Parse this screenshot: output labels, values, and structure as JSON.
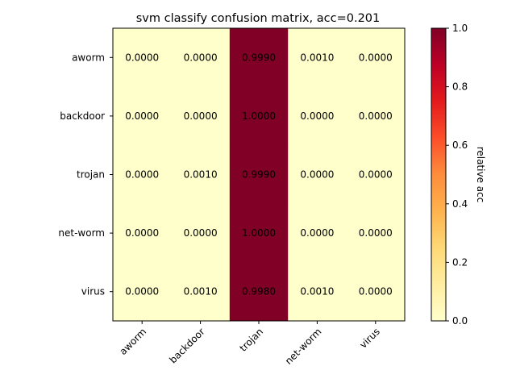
{
  "chart_data": {
    "type": "heatmap",
    "title": "svm classify confusion matrix, acc=0.201",
    "row_labels": [
      "aworm",
      "backdoor",
      "trojan",
      "net-worm",
      "virus"
    ],
    "col_labels": [
      "aworm",
      "backdoor",
      "trojan",
      "net-worm",
      "virus"
    ],
    "values": [
      [
        0.0,
        0.0,
        0.999,
        0.001,
        0.0
      ],
      [
        0.0,
        0.0,
        1.0,
        0.0,
        0.0
      ],
      [
        0.0,
        0.001,
        0.999,
        0.0,
        0.0
      ],
      [
        0.0,
        0.0,
        1.0,
        0.0,
        0.0
      ],
      [
        0.0,
        0.001,
        0.998,
        0.001,
        0.0
      ]
    ],
    "value_format_decimals": 4,
    "colormap": "YlOrRd",
    "colorbar": {
      "label": "relative acc",
      "range": [
        0.0,
        1.0
      ],
      "ticks": [
        "0.0",
        "0.2",
        "0.4",
        "0.6",
        "0.8",
        "1.0"
      ]
    },
    "colors": {
      "low": "#ffffcc",
      "high": "#800026"
    }
  }
}
